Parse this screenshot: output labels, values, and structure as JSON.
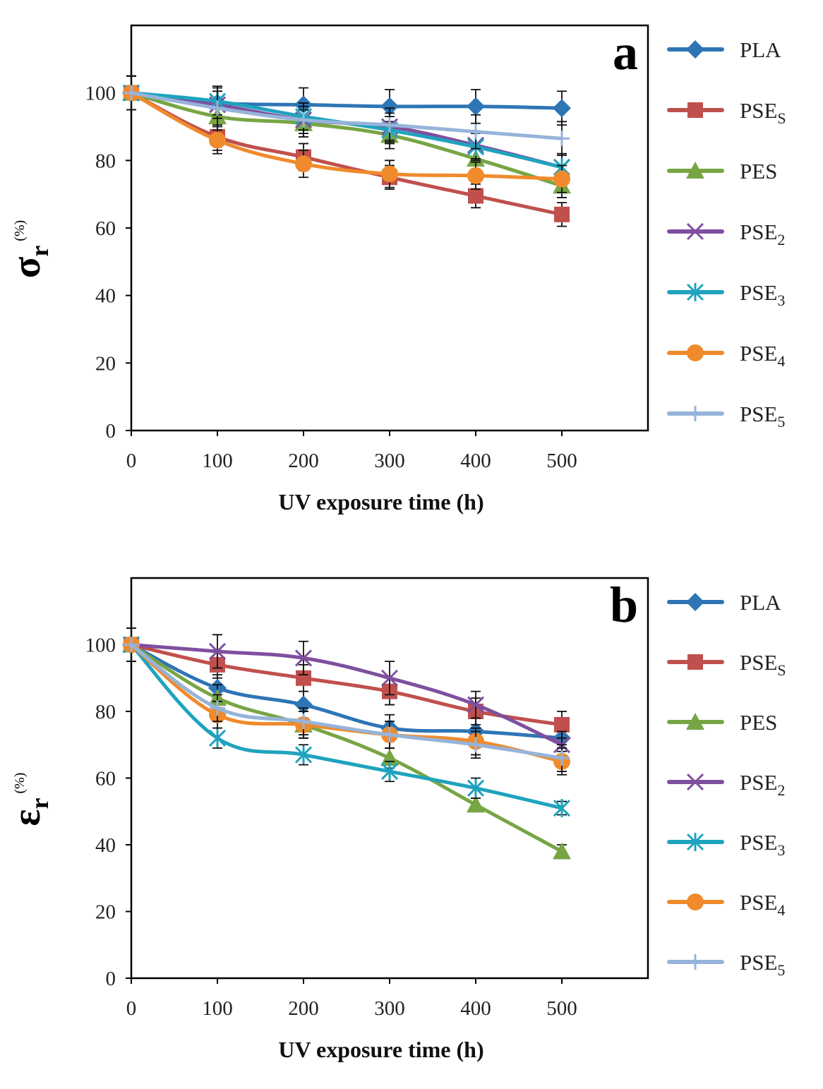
{
  "chart_data": [
    {
      "type": "line",
      "panel": "a",
      "title": "",
      "panel_label": "a",
      "xlabel": "UV exposure time (h)",
      "ylabel": {
        "symbol": "σ",
        "subscript": "r",
        "unit": "(%)"
      },
      "x": [
        0,
        100,
        200,
        300,
        400,
        500
      ],
      "x_ticks": [
        "0",
        "100",
        "200",
        "300",
        "400",
        "500"
      ],
      "y_ticks": [
        "0",
        "20",
        "40",
        "60",
        "80",
        "100"
      ],
      "xlim": [
        0,
        600
      ],
      "ylim": [
        0,
        120
      ],
      "legend_position": "right",
      "series": [
        {
          "name": "PLA",
          "label": "PLA",
          "color": "#2E75B6",
          "marker": "diamond",
          "values": [
            100,
            97,
            96.5,
            96,
            96,
            95.5
          ],
          "errors": [
            5,
            5,
            5,
            5,
            5,
            5
          ]
        },
        {
          "name": "PSES",
          "label": "PSE",
          "sub": "S",
          "color": "#C0504D",
          "marker": "square",
          "values": [
            100,
            87,
            81,
            75,
            69.5,
            64
          ],
          "errors": [
            5,
            4,
            4,
            3.5,
            3.5,
            3.5
          ]
        },
        {
          "name": "PES",
          "label": "PES",
          "color": "#77A544",
          "marker": "triangle",
          "values": [
            100,
            93,
            91,
            87.5,
            80.5,
            72.5
          ],
          "errors": [
            5,
            4,
            4,
            4,
            4,
            3.5
          ]
        },
        {
          "name": "PSE2",
          "label": "PSE",
          "sub": "2",
          "color": "#7F4F9F",
          "marker": "x",
          "values": [
            100,
            96.5,
            92,
            90,
            84.5,
            78
          ],
          "errors": [
            5,
            4,
            4,
            4,
            4,
            4
          ]
        },
        {
          "name": "PSE3",
          "label": "PSE",
          "sub": "3",
          "color": "#1FA3BE",
          "marker": "star",
          "values": [
            100,
            97.5,
            93,
            89,
            84,
            78
          ],
          "errors": [
            5,
            4,
            4,
            4,
            4,
            4
          ]
        },
        {
          "name": "PSE4",
          "label": "PSE",
          "sub": "4",
          "color": "#F08A2C",
          "marker": "circle",
          "values": [
            100,
            86,
            79,
            76,
            75.5,
            74.5
          ],
          "errors": [
            5,
            4,
            4,
            4,
            4,
            4
          ]
        },
        {
          "name": "PSE5",
          "label": "PSE",
          "sub": "5",
          "color": "#96B4DA",
          "marker": "plus",
          "values": [
            100,
            95.5,
            92,
            90.5,
            88.5,
            86.5
          ],
          "errors": [
            5,
            5,
            5,
            5,
            5,
            5
          ]
        }
      ]
    },
    {
      "type": "line",
      "panel": "b",
      "title": "",
      "panel_label": "b",
      "xlabel": "UV exposure time (h)",
      "ylabel": {
        "symbol": "ε",
        "subscript": "r",
        "unit": "(%)"
      },
      "x": [
        0,
        100,
        200,
        300,
        400,
        500
      ],
      "x_ticks": [
        "0",
        "100",
        "200",
        "300",
        "400",
        "500"
      ],
      "y_ticks": [
        "0",
        "20",
        "40",
        "60",
        "80",
        "100"
      ],
      "xlim": [
        0,
        600
      ],
      "ylim": [
        0,
        120
      ],
      "legend_position": "right",
      "series": [
        {
          "name": "PLA",
          "label": "PLA",
          "color": "#2E75B6",
          "marker": "diamond",
          "values": [
            100,
            87,
            82,
            75,
            74,
            72
          ],
          "errors": [
            5,
            4,
            4,
            4,
            4,
            4
          ]
        },
        {
          "name": "PSES",
          "label": "PSE",
          "sub": "S",
          "color": "#C0504D",
          "marker": "square",
          "values": [
            100,
            94,
            90,
            86,
            80,
            76
          ],
          "errors": [
            5,
            4,
            4,
            4,
            4,
            4
          ]
        },
        {
          "name": "PES",
          "label": "PES",
          "color": "#77A544",
          "marker": "triangle",
          "values": [
            100,
            84,
            76,
            66,
            52,
            38
          ],
          "errors": [
            5,
            4,
            4,
            3,
            2,
            2
          ]
        },
        {
          "name": "PSE2",
          "label": "PSE",
          "sub": "2",
          "color": "#7F4F9F",
          "marker": "x",
          "values": [
            100,
            98,
            96,
            90,
            82,
            70
          ],
          "errors": [
            5,
            5,
            5,
            5,
            4,
            4
          ]
        },
        {
          "name": "PSE3",
          "label": "PSE",
          "sub": "3",
          "color": "#1FA3BE",
          "marker": "star",
          "values": [
            100,
            72,
            67,
            62,
            57,
            51
          ],
          "errors": [
            5,
            3,
            3,
            3,
            3,
            2
          ]
        },
        {
          "name": "PSE4",
          "label": "PSE",
          "sub": "4",
          "color": "#F08A2C",
          "marker": "circle",
          "values": [
            100,
            79,
            76,
            73,
            71,
            65
          ],
          "errors": [
            5,
            4,
            4,
            4,
            4,
            4
          ]
        },
        {
          "name": "PSE5",
          "label": "PSE",
          "sub": "5",
          "color": "#96B4DA",
          "marker": "plus",
          "values": [
            100,
            81,
            77,
            73,
            70,
            66
          ],
          "errors": [
            5,
            4,
            4,
            4,
            4,
            4
          ]
        }
      ]
    }
  ]
}
